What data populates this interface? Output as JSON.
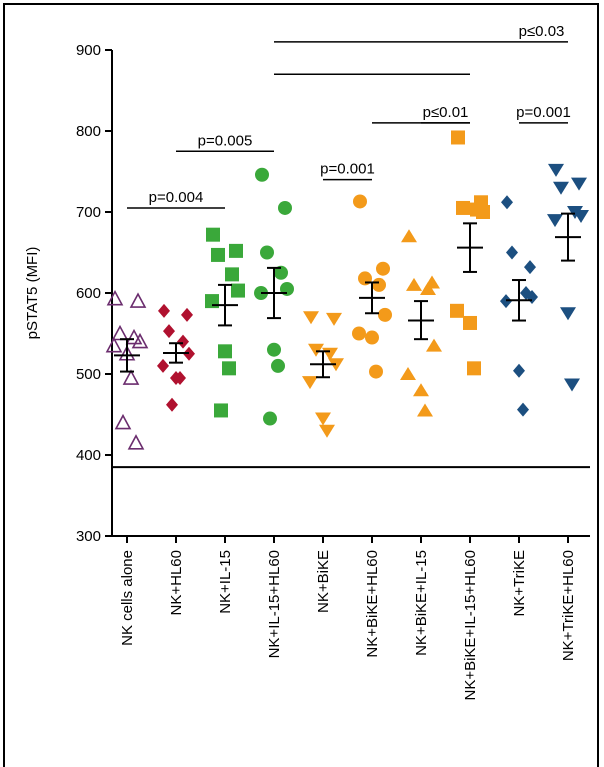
{
  "chart_data": {
    "type": "scatter",
    "ylabel": "pSTAT5 (MFI)",
    "ylim": [
      300,
      900
    ],
    "yticks": [
      300,
      400,
      500,
      600,
      700,
      800,
      900
    ],
    "reference_line": 385,
    "categories": [
      "NK cells alone",
      "NK+HL60",
      "NK+IL-15",
      "NK+IL-15+HL60",
      "NK+BiKE",
      "NK+BiKE+HL60",
      "NK+BiKE+IL-15",
      "NK+BiKE+IL-15+HL60",
      "NK+TriKE",
      "NK+TriKE+HL60"
    ],
    "groups": [
      {
        "category": "NK cells alone",
        "marker": "open-triangle-up",
        "color": "#6b2d6e",
        "values": [
          593,
          590,
          550,
          545,
          540,
          535,
          525,
          495,
          440,
          415
        ],
        "mean": 523,
        "sem_low": 503,
        "sem_high": 543
      },
      {
        "category": "NK+HL60",
        "marker": "diamond",
        "color": "#b0112f",
        "values": [
          578,
          573,
          553,
          540,
          525,
          510,
          495,
          495,
          462
        ],
        "mean": 526,
        "sem_low": 514,
        "sem_high": 538
      },
      {
        "category": "NK+IL-15",
        "marker": "square",
        "color": "#3aa83a",
        "values": [
          672,
          652,
          647,
          623,
          603,
          590,
          528,
          507,
          455
        ],
        "mean": 585,
        "sem_low": 560,
        "sem_high": 610
      },
      {
        "category": "NK+IL-15+HL60",
        "marker": "circle",
        "color": "#3aa83a",
        "values": [
          746,
          705,
          650,
          625,
          605,
          600,
          530,
          510,
          445
        ],
        "mean": 600,
        "sem_low": 569,
        "sem_high": 631
      },
      {
        "category": "NK+BiKE",
        "marker": "triangle-down",
        "color": "#f39a1a",
        "values": [
          570,
          568,
          530,
          525,
          512,
          490,
          445,
          430
        ],
        "mean": 512,
        "sem_low": 496,
        "sem_high": 528
      },
      {
        "category": "NK+BiKE+HL60",
        "marker": "circle",
        "color": "#f39a1a",
        "values": [
          713,
          630,
          618,
          610,
          573,
          550,
          545,
          503
        ],
        "mean": 594,
        "sem_low": 575,
        "sem_high": 613
      },
      {
        "category": "NK+BiKE+IL-15",
        "marker": "triangle-up",
        "color": "#f39a1a",
        "values": [
          670,
          613,
          610,
          605,
          535,
          500,
          480,
          455
        ],
        "mean": 566,
        "sem_low": 543,
        "sem_high": 590
      },
      {
        "category": "NK+BiKE+IL-15+HL60",
        "marker": "square",
        "color": "#f39a1a",
        "values": [
          792,
          712,
          705,
          703,
          700,
          578,
          563,
          507
        ],
        "mean": 656,
        "sem_low": 626,
        "sem_high": 686
      },
      {
        "category": "NK+TriKE",
        "marker": "diamond",
        "color": "#1c4f80",
        "values": [
          712,
          632,
          650,
          600,
          595,
          590,
          504,
          456
        ],
        "mean": 591,
        "sem_low": 566,
        "sem_high": 616
      },
      {
        "category": "NK+TriKE+HL60",
        "marker": "triangle-down",
        "color": "#1c4f80",
        "values": [
          752,
          735,
          730,
          700,
          695,
          690,
          575,
          487
        ],
        "mean": 669,
        "sem_low": 640,
        "sem_high": 698
      }
    ],
    "comparisons": [
      {
        "label": "p=0.004",
        "from": 0,
        "to": 2,
        "y": 705
      },
      {
        "label": "p=0.005",
        "from": 1,
        "to": 3,
        "y": 775
      },
      {
        "label": "p=0.001",
        "from": 4,
        "to": 5,
        "y": 740
      },
      {
        "label": "p≤0.01",
        "from": 5,
        "to": 7,
        "y": 810
      },
      {
        "label": "p≤0.01",
        "from": 6,
        "to": 7,
        "y": 810,
        "bar_only": true
      },
      {
        "label": "p=0.001",
        "from": 8,
        "to": 9,
        "y": 810
      },
      {
        "label": "p≤0.03",
        "from": 3,
        "to": 9,
        "y": 910
      },
      {
        "label": "",
        "from": 3,
        "to": 7,
        "y": 870,
        "bar_only": true
      }
    ]
  }
}
